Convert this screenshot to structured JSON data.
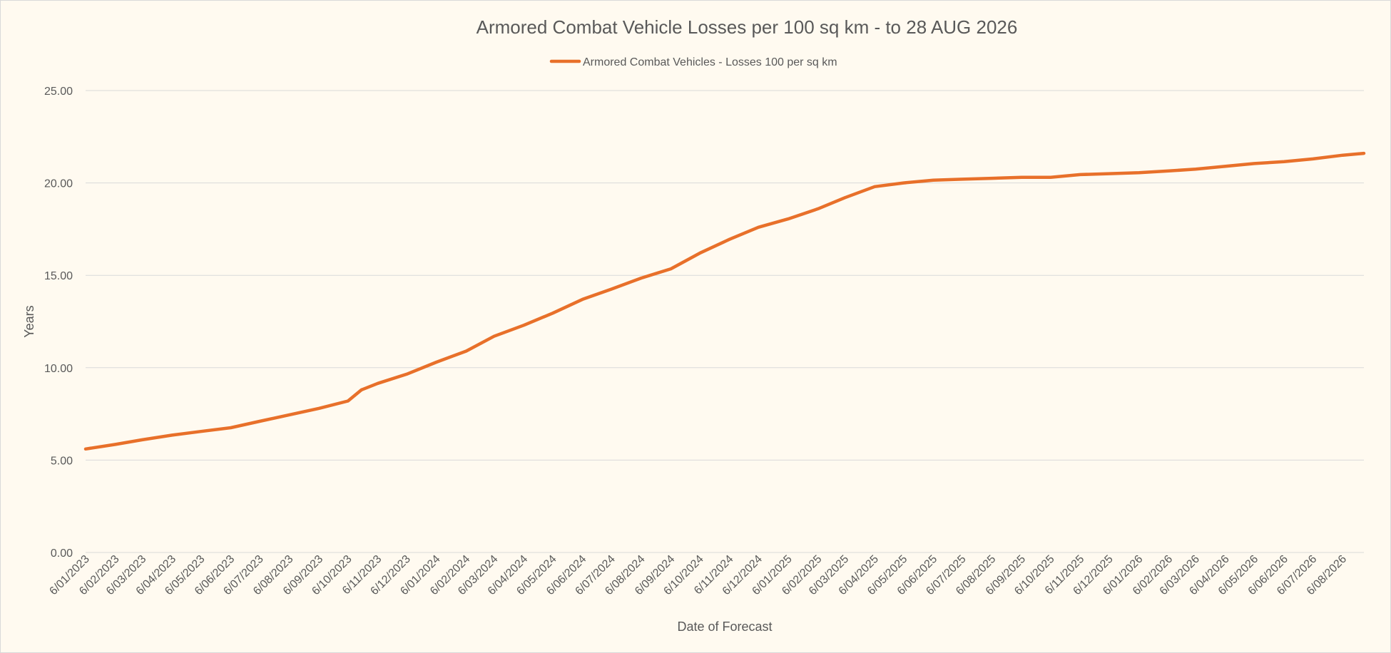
{
  "chart_data": {
    "type": "line",
    "title": "Armored Combat Vehicle Losses per 100 sq km - to 28 AUG 2026",
    "xlabel": "Date of Forecast",
    "ylabel": "Years",
    "legend_position": "top",
    "grid": true,
    "ylim": [
      0,
      25
    ],
    "x_range": [
      "2023-01-06",
      "2026-08-28"
    ],
    "y_ticks": [
      "0.00",
      "5.00",
      "10.00",
      "15.00",
      "20.00",
      "25.00"
    ],
    "x_tick_labels": [
      {
        "date": "2023-01-06",
        "label": "6/01/2023"
      },
      {
        "date": "2023-02-06",
        "label": "6/02/2023"
      },
      {
        "date": "2023-03-06",
        "label": "6/03/2023"
      },
      {
        "date": "2023-04-06",
        "label": "6/04/2023"
      },
      {
        "date": "2023-05-06",
        "label": "6/05/2023"
      },
      {
        "date": "2023-06-06",
        "label": "6/06/2023"
      },
      {
        "date": "2023-07-06",
        "label": "6/07/2023"
      },
      {
        "date": "2023-08-06",
        "label": "6/08/2023"
      },
      {
        "date": "2023-09-06",
        "label": "6/09/2023"
      },
      {
        "date": "2023-10-06",
        "label": "6/10/2023"
      },
      {
        "date": "2023-11-06",
        "label": "6/11/2023"
      },
      {
        "date": "2023-12-06",
        "label": "6/12/2023"
      },
      {
        "date": "2024-01-06",
        "label": "6/01/2024"
      },
      {
        "date": "2024-02-06",
        "label": "6/02/2024"
      },
      {
        "date": "2024-03-06",
        "label": "6/03/2024"
      },
      {
        "date": "2024-04-06",
        "label": "6/04/2024"
      },
      {
        "date": "2024-05-06",
        "label": "6/05/2024"
      },
      {
        "date": "2024-06-06",
        "label": "6/06/2024"
      },
      {
        "date": "2024-07-06",
        "label": "6/07/2024"
      },
      {
        "date": "2024-08-06",
        "label": "6/08/2024"
      },
      {
        "date": "2024-09-06",
        "label": "6/09/2024"
      },
      {
        "date": "2024-10-06",
        "label": "6/10/2024"
      },
      {
        "date": "2024-11-06",
        "label": "6/11/2024"
      },
      {
        "date": "2024-12-06",
        "label": "6/12/2024"
      },
      {
        "date": "2025-01-06",
        "label": "6/01/2025"
      },
      {
        "date": "2025-02-06",
        "label": "6/02/2025"
      },
      {
        "date": "2025-03-06",
        "label": "6/03/2025"
      },
      {
        "date": "2025-04-06",
        "label": "6/04/2025"
      },
      {
        "date": "2025-05-06",
        "label": "6/05/2025"
      },
      {
        "date": "2025-06-06",
        "label": "6/06/2025"
      },
      {
        "date": "2025-07-06",
        "label": "6/07/2025"
      },
      {
        "date": "2025-08-06",
        "label": "6/08/2025"
      },
      {
        "date": "2025-09-06",
        "label": "6/09/2025"
      },
      {
        "date": "2025-10-06",
        "label": "6/10/2025"
      },
      {
        "date": "2025-11-06",
        "label": "6/11/2025"
      },
      {
        "date": "2025-12-06",
        "label": "6/12/2025"
      },
      {
        "date": "2026-01-06",
        "label": "6/01/2026"
      },
      {
        "date": "2026-02-06",
        "label": "6/02/2026"
      },
      {
        "date": "2026-03-06",
        "label": "6/03/2026"
      },
      {
        "date": "2026-04-06",
        "label": "6/04/2026"
      },
      {
        "date": "2026-05-06",
        "label": "6/05/2026"
      },
      {
        "date": "2026-06-06",
        "label": "6/06/2026"
      },
      {
        "date": "2026-07-06",
        "label": "6/07/2026"
      },
      {
        "date": "2026-08-06",
        "label": "6/08/2026"
      }
    ],
    "series": [
      {
        "name": "Armored Combat Vehicles - Losses 100 per sq km",
        "color": "#e8702a",
        "x": [
          "2023-01-06",
          "2023-02-06",
          "2023-03-06",
          "2023-04-06",
          "2023-05-06",
          "2023-06-06",
          "2023-07-06",
          "2023-08-06",
          "2023-09-06",
          "2023-10-06",
          "2023-10-20",
          "2023-11-06",
          "2023-12-06",
          "2024-01-06",
          "2024-02-06",
          "2024-03-06",
          "2024-04-06",
          "2024-05-06",
          "2024-06-06",
          "2024-07-06",
          "2024-08-06",
          "2024-09-06",
          "2024-10-06",
          "2024-11-06",
          "2024-12-06",
          "2025-01-06",
          "2025-02-06",
          "2025-03-06",
          "2025-04-06",
          "2025-05-06",
          "2025-06-06",
          "2025-07-06",
          "2025-08-06",
          "2025-09-06",
          "2025-10-06",
          "2025-11-06",
          "2025-12-06",
          "2026-01-06",
          "2026-02-06",
          "2026-03-06",
          "2026-04-06",
          "2026-05-06",
          "2026-06-06",
          "2026-07-06",
          "2026-08-06",
          "2026-08-28"
        ],
        "y": [
          5.6,
          5.85,
          6.1,
          6.35,
          6.55,
          6.75,
          7.1,
          7.45,
          7.8,
          8.2,
          8.8,
          9.15,
          9.65,
          10.3,
          10.9,
          11.7,
          12.3,
          12.95,
          13.7,
          14.25,
          14.85,
          15.35,
          16.2,
          16.95,
          17.6,
          18.05,
          18.6,
          19.2,
          19.8,
          20.0,
          20.15,
          20.2,
          20.25,
          20.3,
          20.3,
          20.45,
          20.5,
          20.55,
          20.65,
          20.75,
          20.9,
          21.05,
          21.15,
          21.3,
          21.5,
          21.6
        ]
      }
    ]
  }
}
